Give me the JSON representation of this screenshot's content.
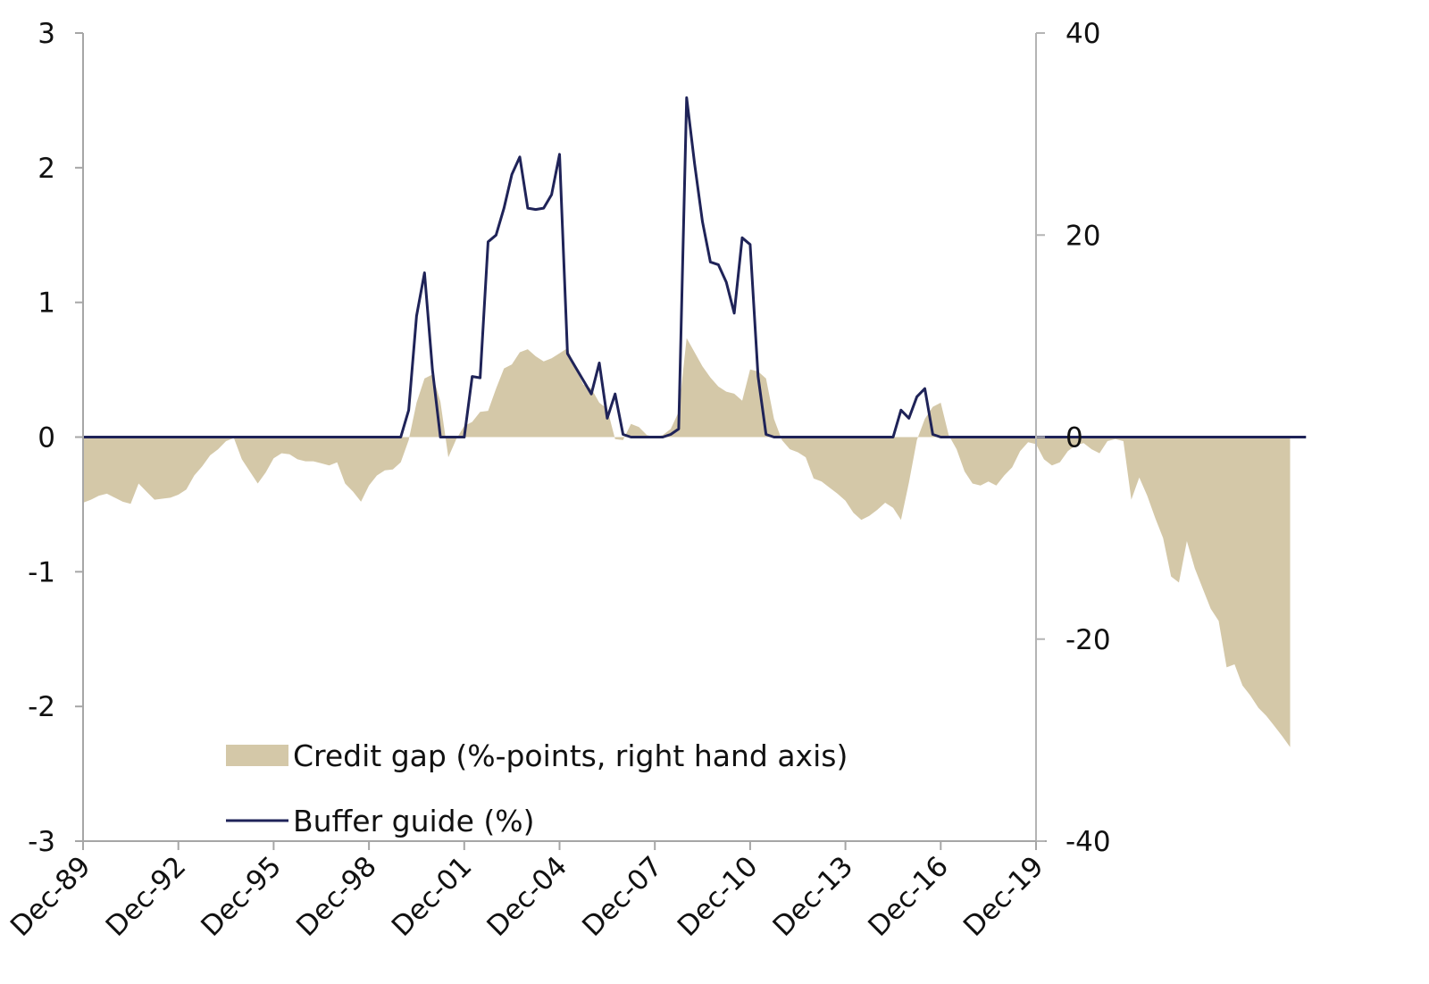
{
  "chart_data": {
    "type": "area+line",
    "title": "",
    "xlabel": "",
    "ylabel_left": "",
    "ylabel_right": "",
    "x_tick_labels": [
      "Dec-89",
      "Dec-92",
      "Dec-95",
      "Dec-98",
      "Dec-01",
      "Dec-04",
      "Dec-07",
      "Dec-10",
      "Dec-13",
      "Dec-16",
      "Dec-19"
    ],
    "x_range": [
      "Dec-89",
      "Dec-19"
    ],
    "x_frequency": "quarterly",
    "left_axis": {
      "ticks": [
        "3",
        "2",
        "1",
        "0",
        "-1",
        "-2",
        "-3"
      ],
      "ylim": [
        -3,
        3
      ]
    },
    "right_axis": {
      "ticks": [
        "40",
        "20",
        "0",
        "-20",
        "-40"
      ],
      "ylim": [
        -40,
        40
      ]
    },
    "grid": false,
    "legend": {
      "position": "lower-left inside plot",
      "items": [
        {
          "label": "Credit gap (%-points, right hand axis)",
          "type": "area",
          "color": "#d4c8a8"
        },
        {
          "label": "Buffer guide (%)",
          "type": "line",
          "color": "#1f2358"
        }
      ]
    },
    "series": [
      {
        "name": "Credit gap (%-points, right hand axis)",
        "axis": "right",
        "type": "area",
        "color": "#d4c8a8",
        "start": "Dec-89",
        "step_quarters": 1,
        "values": [
          -6.5,
          -6.2,
          -5.8,
          -5.6,
          -6.0,
          -6.4,
          -6.6,
          -4.6,
          -5.4,
          -6.2,
          -6.1,
          -6.0,
          -5.7,
          -5.2,
          -3.8,
          -2.9,
          -1.8,
          -1.2,
          -0.4,
          -0.1,
          -2.2,
          -3.4,
          -4.6,
          -3.5,
          -2.1,
          -1.6,
          -1.7,
          -2.2,
          -2.4,
          -2.4,
          -2.6,
          -2.8,
          -2.5,
          -4.6,
          -5.4,
          -6.4,
          -4.8,
          -3.8,
          -3.3,
          -3.2,
          -2.5,
          -0.3,
          3.4,
          5.8,
          6.2,
          3.5,
          -2.0,
          -0.2,
          1.1,
          1.5,
          2.5,
          2.6,
          4.8,
          6.8,
          7.2,
          8.4,
          8.7,
          8.0,
          7.5,
          7.8,
          8.3,
          8.8,
          6.8,
          5.2,
          4.8,
          3.4,
          2.8,
          -0.2,
          -0.3,
          1.3,
          1.0,
          0.2,
          0.0,
          0.2,
          0.8,
          2.5,
          9.8,
          8.4,
          7.0,
          5.9,
          5.0,
          4.5,
          4.3,
          3.6,
          6.7,
          6.5,
          5.8,
          1.8,
          -0.3,
          -1.2,
          -1.5,
          -2.0,
          -4.1,
          -4.4,
          -5.0,
          -5.6,
          -6.3,
          -7.5,
          -8.2,
          -7.8,
          -7.2,
          -6.5,
          -7.0,
          -8.2,
          -4.5,
          -0.3,
          1.8,
          3.0,
          3.4,
          0.2,
          -1.2,
          -3.4,
          -4.6,
          -4.8,
          -4.4,
          -4.8,
          -3.8,
          -3.0,
          -1.4,
          -0.5,
          -0.7,
          -2.2,
          -2.8,
          -2.5,
          -1.4,
          -0.8,
          -0.6,
          -1.2,
          -1.6,
          -0.4,
          -0.2,
          -0.4,
          -6.2,
          -4.0,
          -5.8,
          -8.0,
          -10.0,
          -13.8,
          -14.4,
          -10.3,
          -13.0,
          -15.0,
          -17.0,
          -18.2,
          -22.8,
          -22.5,
          -24.6,
          -25.6,
          -26.8,
          -27.6,
          -28.6,
          -29.6,
          -30.7
        ]
      },
      {
        "name": "Buffer guide (%)",
        "axis": "left",
        "type": "line",
        "color": "#1f2358",
        "start": "Dec-89",
        "step_quarters": 1,
        "values": [
          0,
          0,
          0,
          0,
          0,
          0,
          0,
          0,
          0,
          0,
          0,
          0,
          0,
          0,
          0,
          0,
          0,
          0,
          0,
          0,
          0,
          0,
          0,
          0,
          0,
          0,
          0,
          0,
          0,
          0,
          0,
          0,
          0,
          0,
          0,
          0,
          0,
          0,
          0,
          0,
          0,
          0.2,
          0.9,
          1.22,
          0.5,
          0,
          0,
          0,
          0,
          0.45,
          0.44,
          1.45,
          1.5,
          1.7,
          1.95,
          2.08,
          1.7,
          1.69,
          1.7,
          1.8,
          2.1,
          0.62,
          0.52,
          0.42,
          0.32,
          0.55,
          0.14,
          0.32,
          0.02,
          0,
          0,
          0,
          0,
          0,
          0.02,
          0.06,
          2.52,
          2.03,
          1.6,
          1.3,
          1.28,
          1.15,
          0.92,
          1.48,
          1.43,
          0.45,
          0.02,
          0,
          0,
          0,
          0,
          0,
          0,
          0,
          0,
          0,
          0,
          0,
          0,
          0,
          0,
          0,
          0,
          0.2,
          0.14,
          0.3,
          0.36,
          0.02,
          0,
          0,
          0,
          0,
          0,
          0,
          0,
          0,
          0,
          0,
          0,
          0,
          0,
          0,
          0,
          0,
          0,
          0,
          0,
          0,
          0,
          0,
          0,
          0,
          0,
          0,
          0,
          0,
          0,
          0,
          0,
          0,
          0,
          0,
          0,
          0,
          0,
          0,
          0,
          0,
          0,
          0,
          0,
          0,
          0,
          0,
          0
        ]
      }
    ]
  },
  "legend": {
    "credit_gap_label": "Credit gap (%-points, right hand axis)",
    "buffer_guide_label": "Buffer guide (%)"
  },
  "axes": {
    "left_ticks": [
      "3",
      "2",
      "1",
      "0",
      "-1",
      "-2",
      "-3"
    ],
    "right_ticks": [
      "40",
      "20",
      "0",
      "-20",
      "-40"
    ],
    "x_ticks": [
      "Dec-89",
      "Dec-92",
      "Dec-95",
      "Dec-98",
      "Dec-01",
      "Dec-04",
      "Dec-07",
      "Dec-10",
      "Dec-13",
      "Dec-16",
      "Dec-19"
    ]
  },
  "colors": {
    "credit_gap_fill": "#d4c8a8",
    "buffer_line": "#1f2358",
    "axis": "#a6a6a6",
    "text": "#111111"
  }
}
